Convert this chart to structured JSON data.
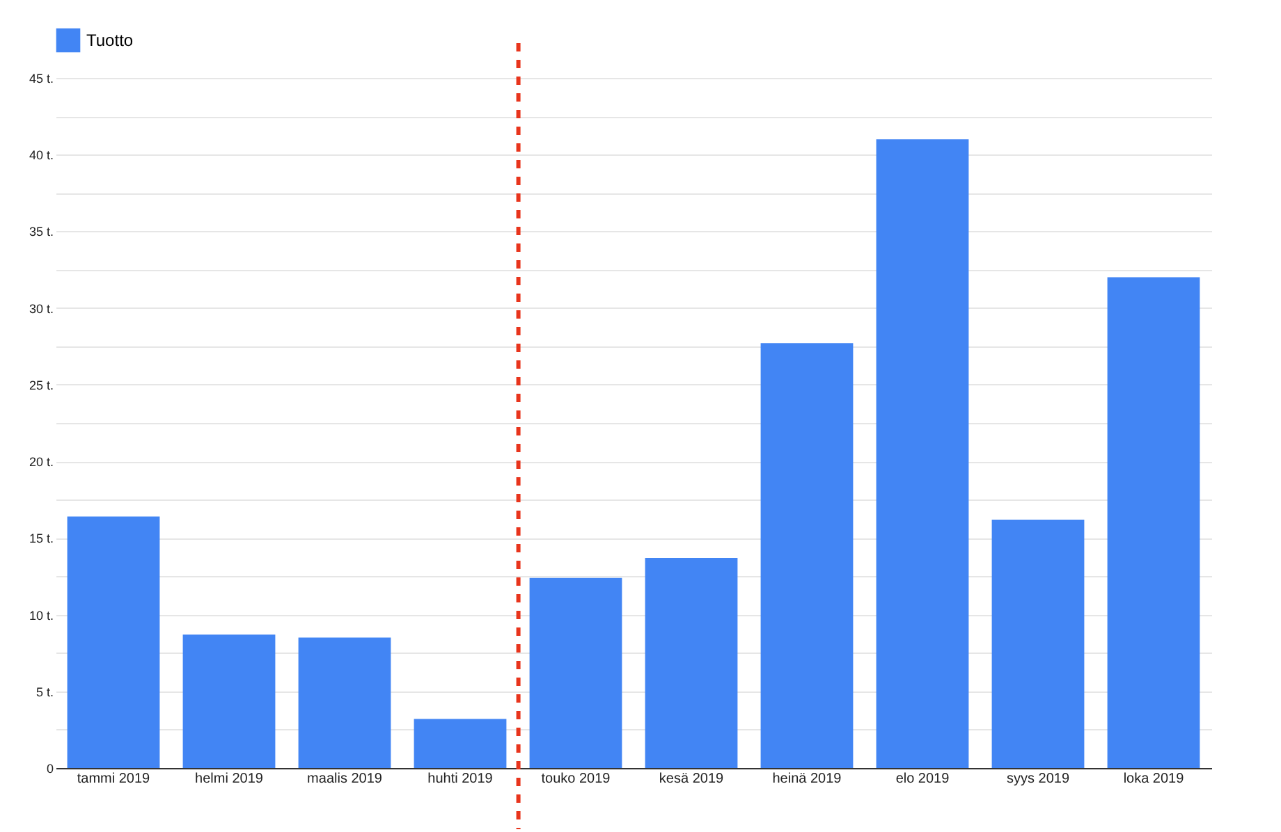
{
  "chart_data": {
    "type": "bar",
    "categories": [
      "tammi 2019",
      "helmi 2019",
      "maalis 2019",
      "huhti 2019",
      "touko 2019",
      "kesä 2019",
      "heinä 2019",
      "elo 2019",
      "syys 2019",
      "loka 2019"
    ],
    "series": [
      {
        "name": "Tuotto",
        "color": "#4285f4",
        "values": [
          16.4,
          8.7,
          8.5,
          3.2,
          12.4,
          13.7,
          27.7,
          41.0,
          16.2,
          32.0
        ]
      }
    ],
    "ylim": [
      0,
      45
    ],
    "yticks": [
      0,
      {
        "value": 2.5,
        "label": null
      },
      {
        "value": 5,
        "label": "5 t."
      },
      {
        "value": 7.5,
        "label": null
      },
      {
        "value": 10,
        "label": "10 t."
      },
      {
        "value": 12.5,
        "label": null
      },
      {
        "value": 15,
        "label": "15 t."
      },
      {
        "value": 17.5,
        "label": null
      },
      {
        "value": 20,
        "label": "20 t."
      },
      {
        "value": 22.5,
        "label": null
      },
      {
        "value": 25,
        "label": "25 t."
      },
      {
        "value": 27.5,
        "label": null
      },
      {
        "value": 30,
        "label": "30 t."
      },
      {
        "value": 32.5,
        "label": null
      },
      {
        "value": 35,
        "label": "35 t."
      },
      {
        "value": 37.5,
        "label": null
      },
      {
        "value": 40,
        "label": "40 t."
      },
      {
        "value": 42.5,
        "label": null
      },
      {
        "value": 45,
        "label": "45 t."
      }
    ],
    "ref_lines": [
      {
        "axis": "x",
        "value": "touko 2019",
        "label": null,
        "color": "#e8341c",
        "line_style": "dashed"
      }
    ],
    "grid": "y",
    "legend": "top left"
  }
}
